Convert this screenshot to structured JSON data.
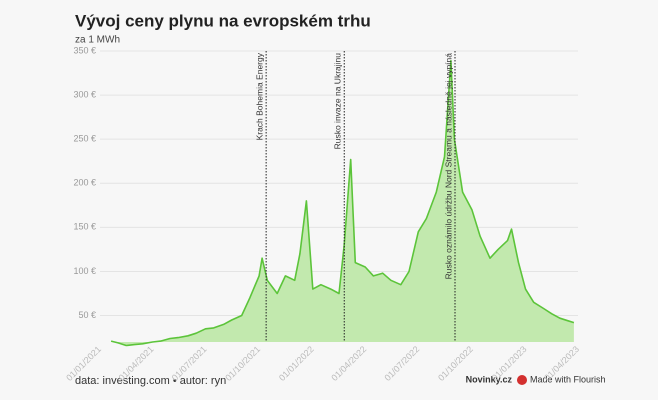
{
  "chart_data": {
    "type": "area",
    "title": "Vývoj ceny plynu na evropském trhu",
    "subtitle": "za 1 MWh",
    "source": "data: investing.com • autor: ryn",
    "brand": "Novinky.cz",
    "made_with": "Made with Flourish",
    "color": "#5cc43a",
    "fill": "#c2e9ae",
    "x": [
      "20/01/2021",
      "01/02/2021",
      "15/02/2021",
      "01/03/2021",
      "15/03/2021",
      "01/04/2021",
      "15/04/2021",
      "01/05/2021",
      "15/05/2021",
      "01/06/2021",
      "15/06/2021",
      "01/07/2021",
      "15/07/2021",
      "01/08/2021",
      "15/08/2021",
      "01/09/2021",
      "15/09/2021",
      "01/10/2021",
      "06/10/2021",
      "15/10/2021",
      "01/11/2021",
      "15/11/2021",
      "01/12/2021",
      "10/12/2021",
      "21/12/2021",
      "01/01/2022",
      "15/01/2022",
      "01/02/2022",
      "15/02/2022",
      "24/02/2022",
      "07/03/2022",
      "15/03/2022",
      "01/04/2022",
      "15/04/2022",
      "01/05/2022",
      "15/05/2022",
      "01/06/2022",
      "15/06/2022",
      "01/07/2022",
      "15/07/2022",
      "01/08/2022",
      "15/08/2022",
      "26/08/2022",
      "01/09/2022",
      "15/09/2022",
      "01/10/2022",
      "15/10/2022",
      "01/11/2022",
      "15/11/2022",
      "01/12/2022",
      "08/12/2022",
      "20/12/2022",
      "01/01/2023",
      "15/01/2023",
      "01/02/2023",
      "15/02/2023",
      "01/03/2023",
      "15/03/2023",
      "25/03/2023"
    ],
    "values": [
      21,
      19,
      16,
      17,
      18,
      20,
      21,
      24,
      25,
      27,
      30,
      35,
      36,
      40,
      45,
      50,
      70,
      95,
      115,
      90,
      75,
      95,
      90,
      120,
      180,
      80,
      85,
      80,
      75,
      130,
      227,
      110,
      105,
      95,
      98,
      90,
      85,
      100,
      145,
      160,
      190,
      230,
      339,
      250,
      190,
      170,
      140,
      115,
      125,
      135,
      148,
      110,
      80,
      65,
      58,
      52,
      47,
      44,
      42
    ],
    "xlim": [
      "01/01/2021",
      "01/04/2023"
    ],
    "xticks": [
      "01/01/2021",
      "01/04/2021",
      "01/07/2021",
      "01/10/2021",
      "01/01/2022",
      "01/04/2022",
      "01/07/2022",
      "01/10/2022",
      "01/01/2023",
      "01/04/2023"
    ],
    "ylim": [
      20,
      350
    ],
    "yticks": [
      {
        "value": 50,
        "label": "50 €"
      },
      {
        "value": 100,
        "label": "100 €"
      },
      {
        "value": 150,
        "label": "150 €"
      },
      {
        "value": 200,
        "label": "200 €"
      },
      {
        "value": 250,
        "label": "250 €"
      },
      {
        "value": 300,
        "label": "300 €"
      },
      {
        "value": 350,
        "label": "350 €"
      }
    ],
    "grid": true,
    "annotations": [
      {
        "x": "13/10/2021",
        "text": "Krach Bohemia Energy"
      },
      {
        "x": "24/02/2022",
        "text": "Rusko invaze na Ukrajinu"
      },
      {
        "x": "02/09/2022",
        "text": "Rusko oznámilo údržbu Nord Streamu a následně jej vypíná"
      }
    ]
  }
}
